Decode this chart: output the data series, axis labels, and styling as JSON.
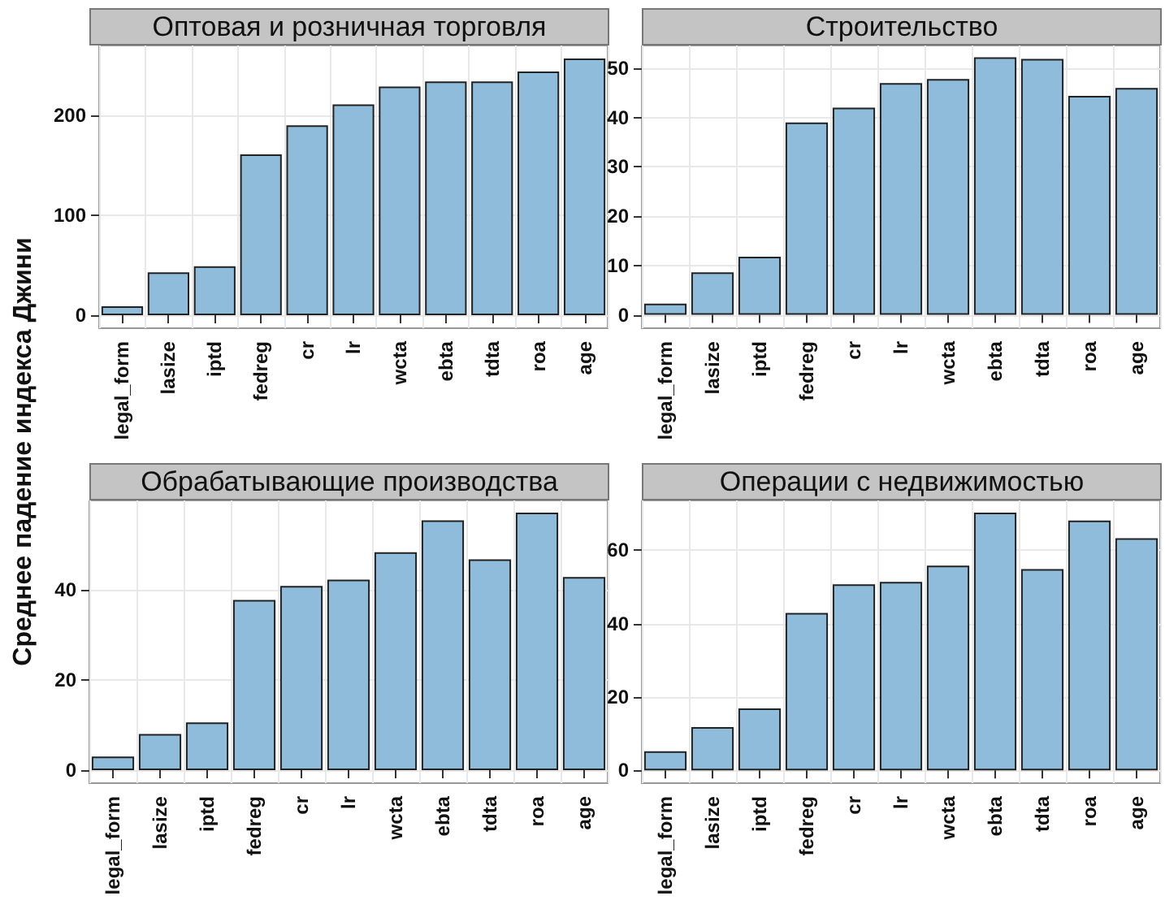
{
  "chart_data": [
    {
      "type": "bar",
      "title": "Оптовая и розничная торговля",
      "ylabel": "Среднее падение индекса Джини",
      "categories": [
        "legal_form",
        "lasize",
        "iptd",
        "fedreg",
        "cr",
        "lr",
        "wcta",
        "ebta",
        "tdta",
        "roa",
        "age"
      ],
      "values": [
        9,
        43,
        49,
        161,
        190,
        211,
        229,
        234,
        234,
        244,
        257
      ],
      "color": "#8fbcdb",
      "ylim": [
        -13,
        270
      ],
      "yticks": [
        0,
        100,
        200
      ],
      "grid": true
    },
    {
      "type": "bar",
      "title": "Строительство",
      "categories": [
        "legal_form",
        "lasize",
        "iptd",
        "fedreg",
        "cr",
        "lr",
        "wcta",
        "ebta",
        "tdta",
        "roa",
        "age"
      ],
      "values": [
        2.3,
        8.6,
        11.8,
        39,
        42,
        47,
        47.8,
        52.2,
        51.9,
        44.4,
        46
      ],
      "color": "#8fbcdb",
      "ylim": [
        -2.7,
        54.6
      ],
      "yticks": [
        0,
        10,
        20,
        30,
        40,
        50
      ],
      "grid": true
    },
    {
      "type": "bar",
      "title": "Обрабатывающие производства",
      "categories": [
        "legal_form",
        "lasize",
        "iptd",
        "fedreg",
        "cr",
        "lr",
        "wcta",
        "ebta",
        "tdta",
        "roa",
        "age"
      ],
      "values": [
        3,
        8,
        10.6,
        37.8,
        40.9,
        42.3,
        48.4,
        55.5,
        46.8,
        57.2,
        42.9
      ],
      "color": "#8fbcdb",
      "ylim": [
        -2.9,
        59.9
      ],
      "yticks": [
        0,
        20,
        40
      ],
      "grid": true
    },
    {
      "type": "bar",
      "title": "Операции с недвижимостью",
      "categories": [
        "legal_form",
        "lasize",
        "iptd",
        "fedreg",
        "cr",
        "lr",
        "wcta",
        "ebta",
        "tdta",
        "roa",
        "age"
      ],
      "values": [
        5.2,
        11.8,
        16.9,
        42.9,
        50.7,
        51.4,
        55.8,
        70.3,
        54.9,
        68.1,
        63.3
      ],
      "color": "#8fbcdb",
      "ylim": [
        -3.5,
        73.6
      ],
      "yticks": [
        0,
        20,
        40,
        60
      ],
      "grid": true
    }
  ]
}
